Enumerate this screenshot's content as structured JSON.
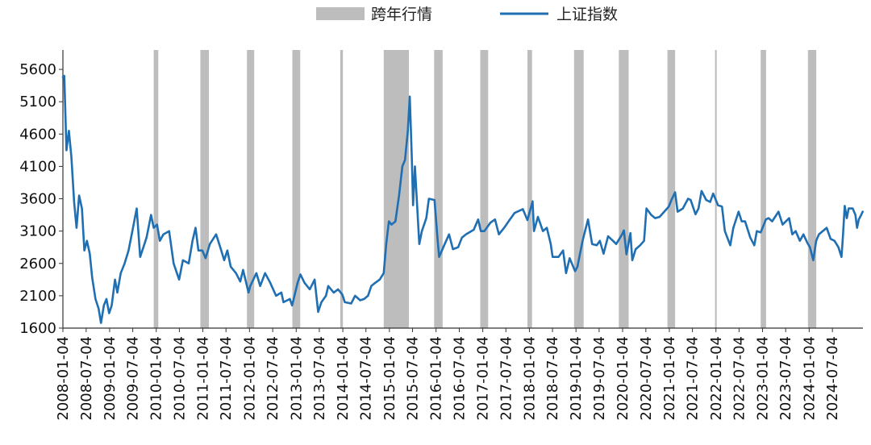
{
  "chart_data": {
    "type": "line",
    "legend": {
      "placement": "top-center",
      "items": [
        {
          "label": "跨年行情",
          "kind": "band",
          "color": "#bdbdbd"
        },
        {
          "label": "上证指数",
          "kind": "line",
          "color": "#1f6fb2"
        }
      ]
    },
    "ylim": [
      1600,
      5900
    ],
    "yticks": [
      1600,
      2100,
      2600,
      3100,
      3600,
      4100,
      4600,
      5100,
      5600
    ],
    "xlim": [
      "2008-01-04",
      "2025-02-28"
    ],
    "xticks": [
      "2008-01-04",
      "2008-07-04",
      "2009-01-04",
      "2009-07-04",
      "2010-01-04",
      "2010-07-04",
      "2011-01-04",
      "2011-07-04",
      "2012-01-04",
      "2012-07-04",
      "2013-01-04",
      "2013-07-04",
      "2014-01-04",
      "2014-07-04",
      "2015-01-04",
      "2015-07-04",
      "2016-01-04",
      "2016-07-04",
      "2017-01-04",
      "2017-07-04",
      "2018-01-04",
      "2018-07-04",
      "2019-01-04",
      "2019-07-04",
      "2020-01-04",
      "2020-07-04",
      "2021-01-04",
      "2021-07-04",
      "2022-01-04",
      "2022-07-04",
      "2023-01-04",
      "2023-07-04",
      "2024-01-04",
      "2024-07-04"
    ],
    "bands": [
      [
        "2009-12-15",
        "2010-01-20"
      ],
      [
        "2010-12-15",
        "2011-02-20"
      ],
      [
        "2011-12-15",
        "2012-02-10"
      ],
      [
        "2012-12-05",
        "2013-02-05"
      ],
      [
        "2013-12-15",
        "2014-01-05"
      ],
      [
        "2014-11-20",
        "2015-06-05"
      ],
      [
        "2015-12-20",
        "2016-02-25"
      ],
      [
        "2016-12-15",
        "2017-02-15"
      ],
      [
        "2017-12-20",
        "2018-01-25"
      ],
      [
        "2018-12-20",
        "2019-03-05"
      ],
      [
        "2019-12-05",
        "2020-02-20"
      ],
      [
        "2020-12-20",
        "2021-02-18"
      ],
      [
        "2021-12-28",
        "2022-01-10"
      ],
      [
        "2022-12-20",
        "2023-01-31"
      ],
      [
        "2023-12-25",
        "2024-02-28"
      ]
    ],
    "series": [
      {
        "name": "上证指数",
        "color": "#1f6fb2",
        "points": [
          [
            "2008-01-04",
            5480
          ],
          [
            "2008-01-15",
            5500
          ],
          [
            "2008-02-01",
            4350
          ],
          [
            "2008-02-20",
            4650
          ],
          [
            "2008-03-10",
            4250
          ],
          [
            "2008-04-01",
            3550
          ],
          [
            "2008-04-20",
            3150
          ],
          [
            "2008-05-10",
            3650
          ],
          [
            "2008-06-01",
            3450
          ],
          [
            "2008-06-20",
            2800
          ],
          [
            "2008-07-10",
            2950
          ],
          [
            "2008-08-01",
            2750
          ],
          [
            "2008-08-20",
            2380
          ],
          [
            "2008-09-15",
            2050
          ],
          [
            "2008-10-10",
            1900
          ],
          [
            "2008-10-28",
            1680
          ],
          [
            "2008-11-20",
            1950
          ],
          [
            "2008-12-10",
            2050
          ],
          [
            "2008-12-31",
            1830
          ],
          [
            "2009-01-20",
            1950
          ],
          [
            "2009-02-15",
            2350
          ],
          [
            "2009-03-05",
            2150
          ],
          [
            "2009-04-01",
            2450
          ],
          [
            "2009-05-01",
            2600
          ],
          [
            "2009-06-01",
            2800
          ],
          [
            "2009-07-01",
            3100
          ],
          [
            "2009-08-04",
            3450
          ],
          [
            "2009-08-31",
            2700
          ],
          [
            "2009-09-25",
            2850
          ],
          [
            "2009-10-20",
            3000
          ],
          [
            "2009-11-24",
            3350
          ],
          [
            "2009-12-15",
            3150
          ],
          [
            "2010-01-10",
            3200
          ],
          [
            "2010-02-01",
            2950
          ],
          [
            "2010-03-01",
            3050
          ],
          [
            "2010-04-15",
            3100
          ],
          [
            "2010-05-20",
            2600
          ],
          [
            "2010-07-02",
            2350
          ],
          [
            "2010-08-01",
            2650
          ],
          [
            "2010-09-15",
            2600
          ],
          [
            "2010-10-15",
            2950
          ],
          [
            "2010-11-08",
            3150
          ],
          [
            "2010-11-30",
            2800
          ],
          [
            "2010-12-31",
            2800
          ],
          [
            "2011-01-25",
            2680
          ],
          [
            "2011-02-28",
            2900
          ],
          [
            "2011-04-18",
            3050
          ],
          [
            "2011-05-20",
            2850
          ],
          [
            "2011-06-20",
            2650
          ],
          [
            "2011-07-15",
            2800
          ],
          [
            "2011-08-10",
            2550
          ],
          [
            "2011-09-20",
            2450
          ],
          [
            "2011-10-24",
            2320
          ],
          [
            "2011-11-15",
            2500
          ],
          [
            "2011-12-28",
            2150
          ],
          [
            "2012-01-10",
            2250
          ],
          [
            "2012-02-27",
            2450
          ],
          [
            "2012-03-28",
            2250
          ],
          [
            "2012-05-05",
            2450
          ],
          [
            "2012-06-15",
            2300
          ],
          [
            "2012-07-30",
            2100
          ],
          [
            "2012-09-10",
            2150
          ],
          [
            "2012-09-26",
            2000
          ],
          [
            "2012-11-15",
            2050
          ],
          [
            "2012-12-03",
            1950
          ],
          [
            "2013-01-15",
            2300
          ],
          [
            "2013-02-06",
            2430
          ],
          [
            "2013-03-10",
            2300
          ],
          [
            "2013-04-20",
            2200
          ],
          [
            "2013-05-28",
            2350
          ],
          [
            "2013-06-25",
            1850
          ],
          [
            "2013-07-20",
            2000
          ],
          [
            "2013-08-25",
            2100
          ],
          [
            "2013-09-12",
            2250
          ],
          [
            "2013-10-25",
            2150
          ],
          [
            "2013-11-28",
            2200
          ],
          [
            "2013-12-31",
            2120
          ],
          [
            "2014-01-20",
            2000
          ],
          [
            "2014-03-10",
            1980
          ],
          [
            "2014-04-10",
            2100
          ],
          [
            "2014-05-20",
            2030
          ],
          [
            "2014-06-20",
            2050
          ],
          [
            "2014-07-20",
            2100
          ],
          [
            "2014-08-15",
            2250
          ],
          [
            "2014-09-15",
            2300
          ],
          [
            "2014-10-20",
            2350
          ],
          [
            "2014-11-20",
            2450
          ],
          [
            "2014-12-10",
            2900
          ],
          [
            "2014-12-31",
            3250
          ],
          [
            "2015-01-20",
            3200
          ],
          [
            "2015-02-20",
            3250
          ],
          [
            "2015-03-20",
            3650
          ],
          [
            "2015-04-15",
            4100
          ],
          [
            "2015-05-06",
            4200
          ],
          [
            "2015-05-28",
            4650
          ],
          [
            "2015-06-12",
            5180
          ],
          [
            "2015-06-29",
            4200
          ],
          [
            "2015-07-08",
            3500
          ],
          [
            "2015-07-23",
            4100
          ],
          [
            "2015-08-26",
            2900
          ],
          [
            "2015-09-15",
            3100
          ],
          [
            "2015-10-20",
            3300
          ],
          [
            "2015-11-09",
            3600
          ],
          [
            "2015-12-23",
            3580
          ],
          [
            "2016-01-15",
            3000
          ],
          [
            "2016-01-28",
            2700
          ],
          [
            "2016-03-01",
            2850
          ],
          [
            "2016-04-15",
            3050
          ],
          [
            "2016-05-15",
            2820
          ],
          [
            "2016-06-25",
            2850
          ],
          [
            "2016-07-25",
            3000
          ],
          [
            "2016-08-25",
            3050
          ],
          [
            "2016-10-25",
            3120
          ],
          [
            "2016-11-29",
            3280
          ],
          [
            "2016-12-20",
            3100
          ],
          [
            "2017-01-16",
            3100
          ],
          [
            "2017-03-05",
            3230
          ],
          [
            "2017-04-10",
            3280
          ],
          [
            "2017-05-10",
            3050
          ],
          [
            "2017-06-20",
            3150
          ],
          [
            "2017-07-25",
            3250
          ],
          [
            "2017-09-10",
            3380
          ],
          [
            "2017-11-14",
            3440
          ],
          [
            "2017-12-20",
            3270
          ],
          [
            "2018-01-29",
            3560
          ],
          [
            "2018-02-09",
            3100
          ],
          [
            "2018-03-12",
            3320
          ],
          [
            "2018-04-20",
            3100
          ],
          [
            "2018-05-20",
            3150
          ],
          [
            "2018-06-20",
            2900
          ],
          [
            "2018-07-05",
            2700
          ],
          [
            "2018-08-20",
            2700
          ],
          [
            "2018-09-25",
            2800
          ],
          [
            "2018-10-18",
            2450
          ],
          [
            "2018-11-15",
            2680
          ],
          [
            "2018-12-28",
            2480
          ],
          [
            "2019-01-15",
            2550
          ],
          [
            "2019-02-25",
            2950
          ],
          [
            "2019-04-08",
            3280
          ],
          [
            "2019-05-10",
            2900
          ],
          [
            "2019-06-15",
            2880
          ],
          [
            "2019-07-10",
            2950
          ],
          [
            "2019-08-08",
            2750
          ],
          [
            "2019-09-12",
            3020
          ],
          [
            "2019-10-20",
            2950
          ],
          [
            "2019-11-15",
            2900
          ],
          [
            "2019-12-31",
            3050
          ],
          [
            "2020-01-14",
            3110
          ],
          [
            "2020-02-03",
            2740
          ],
          [
            "2020-03-05",
            3070
          ],
          [
            "2020-03-20",
            2650
          ],
          [
            "2020-04-15",
            2820
          ],
          [
            "2020-05-20",
            2880
          ],
          [
            "2020-06-20",
            2950
          ],
          [
            "2020-07-09",
            3450
          ],
          [
            "2020-08-15",
            3350
          ],
          [
            "2020-09-15",
            3300
          ],
          [
            "2020-10-20",
            3320
          ],
          [
            "2020-11-25",
            3400
          ],
          [
            "2020-12-31",
            3480
          ],
          [
            "2021-01-20",
            3580
          ],
          [
            "2021-02-18",
            3700
          ],
          [
            "2021-03-10",
            3400
          ],
          [
            "2021-04-20",
            3450
          ],
          [
            "2021-05-31",
            3600
          ],
          [
            "2021-06-20",
            3580
          ],
          [
            "2021-07-28",
            3360
          ],
          [
            "2021-08-20",
            3450
          ],
          [
            "2021-09-13",
            3720
          ],
          [
            "2021-10-20",
            3580
          ],
          [
            "2021-11-20",
            3550
          ],
          [
            "2021-12-13",
            3680
          ],
          [
            "2022-01-20",
            3500
          ],
          [
            "2022-02-20",
            3480
          ],
          [
            "2022-03-15",
            3100
          ],
          [
            "2022-04-26",
            2880
          ],
          [
            "2022-05-20",
            3150
          ],
          [
            "2022-06-30",
            3400
          ],
          [
            "2022-07-25",
            3250
          ],
          [
            "2022-08-20",
            3250
          ],
          [
            "2022-09-30",
            3000
          ],
          [
            "2022-10-31",
            2880
          ],
          [
            "2022-11-20",
            3100
          ],
          [
            "2022-12-20",
            3080
          ],
          [
            "2023-01-30",
            3280
          ],
          [
            "2023-02-20",
            3300
          ],
          [
            "2023-03-20",
            3250
          ],
          [
            "2023-05-09",
            3400
          ],
          [
            "2023-06-10",
            3200
          ],
          [
            "2023-07-31",
            3300
          ],
          [
            "2023-08-25",
            3050
          ],
          [
            "2023-09-20",
            3100
          ],
          [
            "2023-10-23",
            2950
          ],
          [
            "2023-11-20",
            3050
          ],
          [
            "2023-12-20",
            2920
          ],
          [
            "2024-01-10",
            2850
          ],
          [
            "2024-02-05",
            2650
          ],
          [
            "2024-02-28",
            2950
          ],
          [
            "2024-03-20",
            3050
          ],
          [
            "2024-05-20",
            3150
          ],
          [
            "2024-06-20",
            2980
          ],
          [
            "2024-07-20",
            2950
          ],
          [
            "2024-08-20",
            2850
          ],
          [
            "2024-09-13",
            2700
          ],
          [
            "2024-09-24",
            3000
          ],
          [
            "2024-10-08",
            3490
          ],
          [
            "2024-10-25",
            3300
          ],
          [
            "2024-11-08",
            3450
          ],
          [
            "2024-12-10",
            3450
          ],
          [
            "2024-12-31",
            3350
          ],
          [
            "2025-01-13",
            3150
          ],
          [
            "2025-01-27",
            3280
          ],
          [
            "2025-02-14",
            3350
          ],
          [
            "2025-02-26",
            3400
          ]
        ]
      }
    ]
  }
}
